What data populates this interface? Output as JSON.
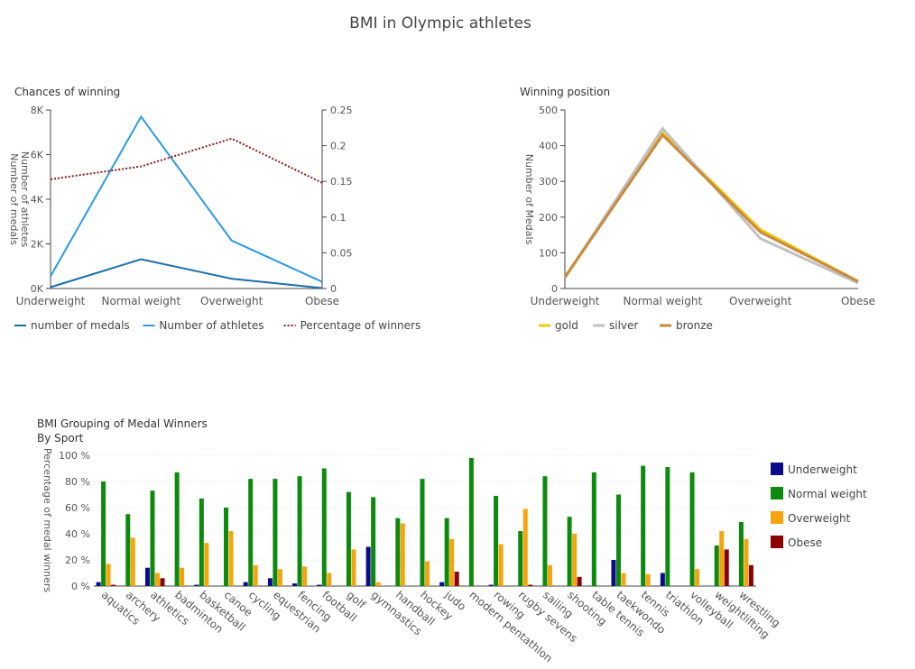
{
  "page_title": "BMI in Olympic athletes",
  "chart_data": [
    {
      "id": "chances",
      "type": "line",
      "title": "Chances of winning",
      "ylabel": "Number of medals\nNumber of athletes",
      "categories": [
        "Underweight",
        "Normal weight",
        "Overweight",
        "Obese"
      ],
      "y_left": {
        "ylim": [
          0,
          8000
        ],
        "ticks": [
          "0K",
          "2K",
          "4K",
          "6K",
          "8K"
        ]
      },
      "y_right": {
        "ylim": [
          0,
          0.25
        ],
        "ticks": [
          "0",
          "0.05",
          "0.1",
          "0.15",
          "0.2",
          "0.25"
        ]
      },
      "series": [
        {
          "name": "number of medals",
          "axis": "left",
          "color": "#1a6fa8",
          "dash": false,
          "values": [
            60,
            1310,
            440,
            20
          ]
        },
        {
          "name": "Number of athletes",
          "axis": "left",
          "color": "#2b9ae0",
          "dash": false,
          "values": [
            550,
            7700,
            2150,
            300
          ]
        },
        {
          "name": "Percentage of winners",
          "axis": "right",
          "color": "#8b1a1a",
          "dash": true,
          "values": [
            0.153,
            0.171,
            0.21,
            0.148
          ]
        }
      ],
      "legend": "bottom"
    },
    {
      "id": "position",
      "type": "line",
      "title": "Winning position",
      "ylabel": "Number of Medals",
      "categories": [
        "Underweight",
        "Normal weight",
        "Overweight",
        "Obese"
      ],
      "ylim": [
        0,
        500
      ],
      "ticks": [
        "0",
        "100",
        "200",
        "300",
        "400",
        "500"
      ],
      "series": [
        {
          "name": "gold",
          "color": "#f2c80f",
          "values": [
            30,
            435,
            165,
            20
          ]
        },
        {
          "name": "silver",
          "color": "#c0c0c0",
          "values": [
            30,
            448,
            140,
            15
          ]
        },
        {
          "name": "bronze",
          "color": "#c88a3e",
          "values": [
            32,
            430,
            158,
            20
          ]
        }
      ],
      "legend": "bottom"
    },
    {
      "id": "bysport",
      "type": "bar",
      "title": "BMI Grouping of Medal Winners",
      "subtitle": "By Sport",
      "ylabel": "Percentage of medal winners",
      "ylim": [
        0,
        100
      ],
      "ticks": [
        "0 %",
        "20 %",
        "40 %",
        "60 %",
        "80 %",
        "100 %"
      ],
      "categories": [
        "aquatics",
        "archery",
        "athletics",
        "badminton",
        "basketball",
        "canoe",
        "cycling",
        "equestrian",
        "fencing",
        "football",
        "golf",
        "gymnastics",
        "handball",
        "hockey",
        "judo",
        "modern pentathlon",
        "rowing",
        "rugby sevens",
        "sailing",
        "shooting",
        "table tennis",
        "taekwondo",
        "tennis",
        "triathlon",
        "volleyball",
        "weightlifting",
        "wrestling"
      ],
      "series": [
        {
          "name": "Underweight",
          "color": "#0b0c8a",
          "values": [
            3,
            0,
            14,
            0,
            1,
            0,
            3,
            6,
            2,
            1,
            0,
            30,
            0,
            0,
            3,
            0,
            1,
            0,
            0,
            0,
            0,
            20,
            0,
            10,
            0,
            0,
            0
          ]
        },
        {
          "name": "Normal weight",
          "color": "#0d8a0d",
          "values": [
            80,
            55,
            73,
            87,
            67,
            60,
            82,
            82,
            84,
            90,
            72,
            68,
            52,
            82,
            52,
            98,
            69,
            42,
            84,
            53,
            87,
            70,
            92,
            91,
            87,
            31,
            49
          ]
        },
        {
          "name": "Overweight",
          "color": "#f5a50b",
          "values": [
            17,
            37,
            10,
            14,
            33,
            42,
            16,
            13,
            15,
            10,
            28,
            3,
            48,
            19,
            36,
            0,
            32,
            59,
            16,
            40,
            0,
            10,
            9,
            0,
            13,
            42,
            36
          ]
        },
        {
          "name": "Obese",
          "color": "#8b0000",
          "values": [
            1,
            0,
            6,
            0,
            0,
            0,
            0,
            0,
            0,
            0,
            0,
            0,
            0,
            0,
            11,
            0,
            0,
            1,
            0,
            7,
            0,
            0,
            0,
            0,
            0,
            28,
            16
          ]
        }
      ],
      "legend": "right"
    }
  ]
}
